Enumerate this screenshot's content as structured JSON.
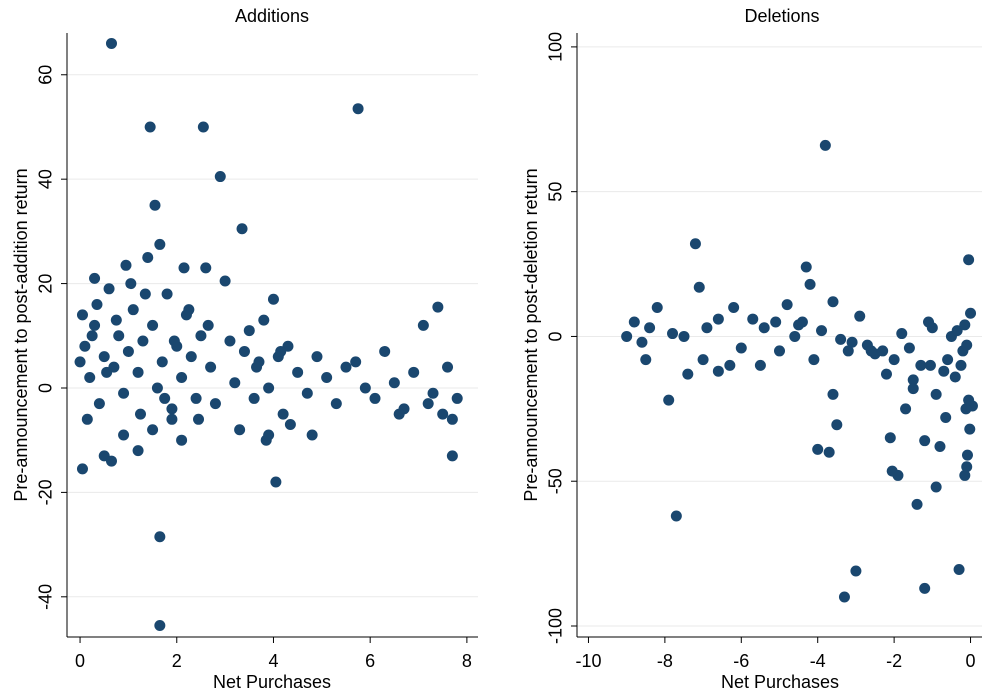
{
  "chart_data": [
    {
      "type": "scatter",
      "title": "Additions",
      "x_label": "Net Purchases",
      "y_label": "Pre-announcement to post-addition return",
      "color": "#1a476f",
      "grid": true,
      "xlim": [
        -0.27,
        8.23
      ],
      "ylim": [
        -47.7,
        68
      ],
      "xticks": [
        0,
        2,
        4,
        6,
        8
      ],
      "yticks": [
        -40,
        -20,
        0,
        20,
        40,
        60
      ],
      "series": [
        {
          "x": [
            0.65,
            1.45,
            2.55,
            5.75,
            2.9,
            1.55,
            3.35,
            1.65,
            1.65,
            4.05,
            0.05,
            7.7,
            1.65,
            2.6,
            3.0,
            0.95,
            2.15,
            0.3,
            4.0,
            7.4,
            0.0,
            0.1,
            0.2,
            0.3,
            0.4,
            0.5,
            0.6,
            0.7,
            0.8,
            0.9,
            1.0,
            1.1,
            1.2,
            1.3,
            1.4,
            1.5,
            1.6,
            1.7,
            1.8,
            1.9,
            2.0,
            2.1,
            2.2,
            2.3,
            2.4,
            2.5,
            2.7,
            2.8,
            3.1,
            3.2,
            3.4,
            3.5,
            3.6,
            3.7,
            3.8,
            3.9,
            4.1,
            4.2,
            4.3,
            4.5,
            4.7,
            4.9,
            5.1,
            5.3,
            5.5,
            5.7,
            5.9,
            6.1,
            6.3,
            6.5,
            6.7,
            6.9,
            7.1,
            7.3,
            7.5,
            7.6,
            7.8,
            0.05,
            0.15,
            0.35,
            0.55,
            0.75,
            1.05,
            1.25,
            1.35,
            1.75,
            1.95,
            2.25,
            2.45,
            2.65,
            3.65,
            3.85,
            4.15,
            4.35,
            0.5,
            0.65,
            0.9,
            1.2,
            2.1,
            3.3,
            3.9,
            4.8,
            6.6,
            7.2,
            7.7,
            1.5,
            1.9,
            0.25
          ],
          "y": [
            66,
            50,
            50,
            53.5,
            40.5,
            35,
            30.5,
            -28.5,
            -45.5,
            -18,
            -15.5,
            -13,
            27.5,
            23,
            20.5,
            23.5,
            23,
            21,
            17,
            15.5,
            5,
            8,
            2,
            12,
            -3,
            6,
            19,
            4,
            10,
            -1,
            7,
            15,
            3,
            9,
            25,
            12,
            0,
            5,
            18,
            -4,
            8,
            2,
            14,
            6,
            -2,
            10,
            4,
            -3,
            9,
            1,
            7,
            11,
            -2,
            5,
            13,
            0,
            6,
            -5,
            8,
            3,
            -1,
            6,
            2,
            -3,
            4,
            5,
            0,
            -2,
            7,
            1,
            -4,
            3,
            12,
            -1,
            -5,
            4,
            -2,
            14,
            -6,
            16,
            3,
            13,
            20,
            -5,
            18,
            -2,
            9,
            15,
            -6,
            12,
            4,
            -10,
            7,
            -7,
            -13,
            -14,
            -9,
            -12,
            -10,
            -8,
            -9,
            -9,
            -5,
            -3,
            -6,
            -8,
            -6,
            10
          ]
        }
      ]
    },
    {
      "type": "scatter",
      "title": "Deletions",
      "x_label": "Net Purchases",
      "y_label": "Pre-announcement to post-deletion return",
      "color": "#1a476f",
      "grid": true,
      "xlim": [
        -10.3,
        0.3
      ],
      "ylim": [
        -103.8,
        104.8
      ],
      "xticks": [
        -10,
        -8,
        -6,
        -4,
        -2,
        0
      ],
      "yticks": [
        -100,
        -50,
        0,
        50,
        100
      ],
      "series": [
        {
          "x": [
            -3.8,
            -7.2,
            -0.05,
            -4.3,
            -7.7,
            -3.3,
            -3.0,
            -1.2,
            -0.3,
            -1.4,
            -0.9,
            -1.9,
            -2.05,
            -2.1,
            -3.5,
            -3.7,
            -4.0,
            -7.9,
            -0.1,
            -0.15,
            -1.2,
            -0.8,
            -9.0,
            -8.8,
            -8.6,
            -8.4,
            -8.2,
            -7.8,
            -7.5,
            -7.1,
            -6.9,
            -6.6,
            -6.3,
            -6.0,
            -5.7,
            -5.4,
            -5.1,
            -4.8,
            -4.6,
            -4.4,
            -4.1,
            -3.9,
            -3.6,
            -3.4,
            -3.2,
            -2.9,
            -2.7,
            -2.5,
            -2.3,
            -2.0,
            -1.8,
            -1.6,
            -1.5,
            -1.3,
            -1.1,
            -1.0,
            -0.9,
            -0.7,
            -0.6,
            -0.5,
            -0.4,
            -0.2,
            -0.1,
            0.0,
            0.05,
            -0.02,
            -0.08,
            -0.12,
            -0.25,
            -0.35,
            -1.7,
            -1.5,
            -1.05,
            -0.65,
            -2.2,
            -2.6,
            -3.1,
            -3.6,
            -4.2,
            -5.0,
            -5.5,
            -6.2,
            -7.0,
            -7.4,
            -8.5,
            -0.05,
            -0.15,
            -4.5,
            -6.6
          ],
          "y": [
            66,
            32,
            26.5,
            24,
            -62,
            -90,
            -81,
            -87,
            -80.5,
            -58,
            -52,
            -48,
            -46.5,
            -35,
            -30.5,
            -40,
            -39,
            -22,
            -45,
            -48,
            -36,
            -38,
            0,
            5,
            -2,
            3,
            10,
            1,
            0,
            17,
            3,
            6,
            -10,
            -4,
            6,
            3,
            5,
            11,
            0,
            5,
            -8,
            2,
            12,
            -1,
            -5,
            7,
            -3,
            -6,
            -5,
            -8,
            1,
            -4,
            -15,
            -10,
            5,
            3,
            -20,
            -12,
            -8,
            0,
            -14,
            -5,
            -3,
            8,
            -24,
            -32,
            -41,
            -25,
            -10,
            2,
            -25,
            -18,
            -10,
            -28,
            -13,
            -5,
            -2,
            -20,
            18,
            -5,
            -10,
            10,
            -8,
            -13,
            -8,
            -22,
            4,
            4,
            -12
          ]
        }
      ]
    }
  ]
}
